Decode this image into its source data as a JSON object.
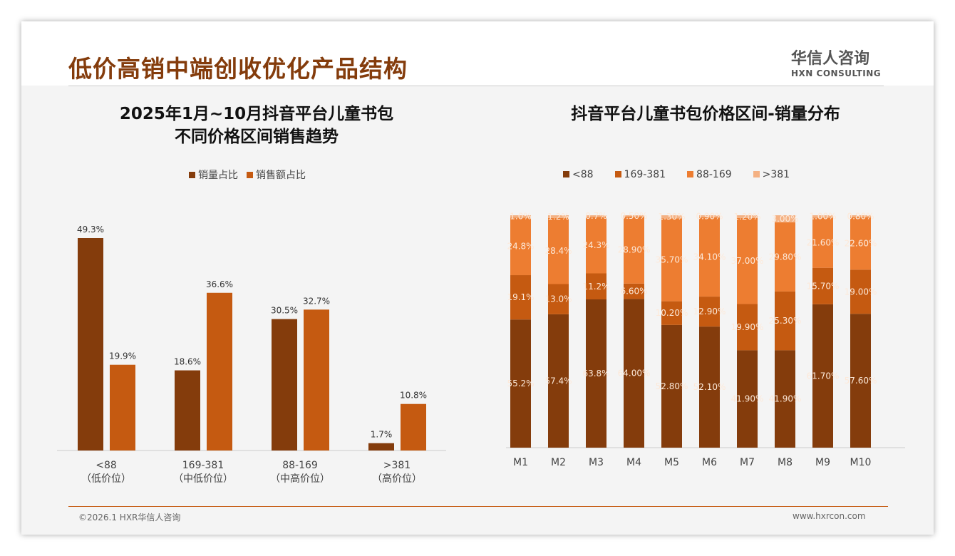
{
  "header": {
    "title": "低价高销中端创收优化产品结构",
    "logo_cn": "华信人咨询",
    "logo_en": "HXN CONSULTING"
  },
  "footer": {
    "left": "©2026.1 HXR华信人咨询",
    "right": "www.hxrcon.com"
  },
  "colors": {
    "c1": "#843c0c",
    "c2": "#c55a11",
    "c3": "#ed7d31",
    "c4": "#f4b183"
  },
  "chart_data": [
    {
      "type": "bar",
      "title": [
        "2025年1月~10月抖音平台儿童书包",
        "不同价格区间销售趋势"
      ],
      "categories": [
        "<88",
        "169-381",
        "88-169",
        ">381"
      ],
      "sublabels": [
        "（低价位）",
        "（中低价位）",
        "（中高价位）",
        "（高价位）"
      ],
      "series": [
        {
          "name": "销量占比",
          "values": [
            49.3,
            18.6,
            30.5,
            1.7
          ],
          "labels": [
            "49.3%",
            "18.6%",
            "30.5%",
            "1.7%"
          ]
        },
        {
          "name": "销售额占比",
          "values": [
            19.9,
            36.6,
            32.7,
            10.8
          ],
          "labels": [
            "19.9%",
            "36.6%",
            "32.7%",
            "10.8%"
          ]
        }
      ],
      "legend": "top",
      "ylim": [
        0,
        55
      ]
    },
    {
      "type": "bar",
      "stacked": true,
      "title": "抖音平台儿童书包价格区间-销量分布",
      "categories": [
        "M1",
        "M2",
        "M3",
        "M4",
        "M5",
        "M6",
        "M7",
        "M8",
        "M9",
        "M10"
      ],
      "series": [
        {
          "name": "<88",
          "values": [
            55.2,
            57.4,
            63.8,
            64.0,
            52.8,
            52.1,
            41.9,
            41.9,
            61.7,
            57.6
          ],
          "labels": [
            "55.2%",
            "57.4%",
            "63.8%",
            "64.00%",
            "52.80%",
            "52.10%",
            "41.90%",
            "41.90%",
            "61.70%",
            "57.60%"
          ]
        },
        {
          "name": "169-381",
          "values": [
            19.1,
            13.0,
            11.2,
            6.6,
            10.2,
            12.9,
            19.9,
            25.3,
            15.7,
            19.0
          ],
          "labels": [
            "19.1%",
            "13.0%",
            "11.2%",
            "6.60%",
            "10.20%",
            "12.90%",
            "19.90%",
            "25.30%",
            "15.70%",
            "19.00%"
          ]
        },
        {
          "name": "88-169",
          "values": [
            24.8,
            28.4,
            24.3,
            28.9,
            35.7,
            34.1,
            37.0,
            29.8,
            21.6,
            22.6
          ],
          "labels": [
            "24.8%",
            "28.4%",
            "24.3%",
            "28.90%",
            "35.70%",
            "34.10%",
            "37.00%",
            "29.80%",
            "21.60%",
            "22.60%"
          ]
        },
        {
          "name": ">381",
          "values": [
            1.0,
            1.2,
            0.7,
            0.5,
            1.3,
            0.9,
            1.2,
            3.0,
            1.0,
            0.8
          ],
          "labels": [
            "1.0%",
            "1.2%",
            "0.7%",
            "0.50%",
            "1.30%",
            "0.90%",
            "1.20%",
            "3.00%",
            "1.00%",
            "0.80%"
          ]
        }
      ],
      "legend": "top",
      "ylim": [
        0,
        100
      ]
    }
  ]
}
